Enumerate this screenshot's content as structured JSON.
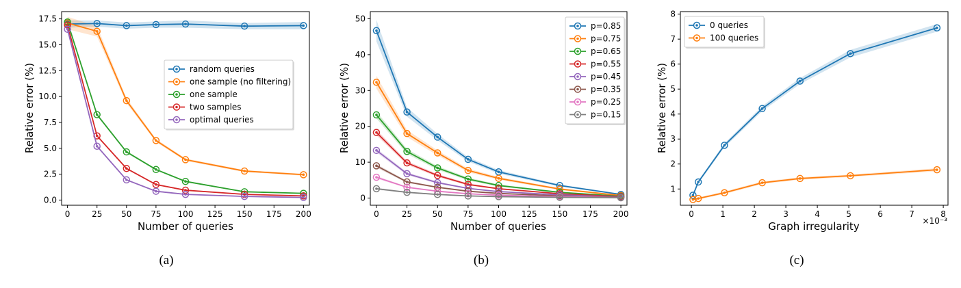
{
  "colors": {
    "blue": "#1f77b4",
    "orange": "#ff7f0e",
    "green": "#2ca02c",
    "red": "#d62728",
    "purple": "#9467bd",
    "brown": "#8c564b",
    "pink": "#e377c2",
    "gray": "#7f7f7f"
  },
  "chart_data": [
    {
      "type": "line",
      "caption": "(a)",
      "xlabel": "Number of queries",
      "ylabel": "Relative error (%)",
      "xlim": [
        -5,
        205
      ],
      "ylim": [
        -0.5,
        18.2
      ],
      "xticks": [
        0,
        25,
        50,
        75,
        100,
        125,
        150,
        175,
        200
      ],
      "xtick_labels": [
        "0",
        "25",
        "50",
        "75",
        "100",
        "125",
        "150",
        "175",
        "200"
      ],
      "yticks": [
        0,
        2.5,
        5,
        7.5,
        10,
        12.5,
        15,
        17.5
      ],
      "ytick_labels": [
        "0.0",
        "2.5",
        "5.0",
        "7.5",
        "10.0",
        "12.5",
        "15.0",
        "17.5"
      ],
      "x": [
        0,
        25,
        50,
        75,
        100,
        150,
        200
      ],
      "legend_position": "center-right",
      "series": [
        {
          "name": "random queries",
          "color": "blue",
          "values": [
            17.0,
            17.05,
            16.85,
            16.95,
            17.0,
            16.8,
            16.85
          ],
          "band": [
            0.35,
            0.3,
            0.3,
            0.3,
            0.35,
            0.3,
            0.35
          ]
        },
        {
          "name": "one sample (no filtering)",
          "color": "orange",
          "values": [
            17.1,
            16.3,
            9.6,
            5.75,
            3.9,
            2.8,
            2.45
          ],
          "band": [
            0.6,
            0.5,
            0.25,
            0.15,
            0.12,
            0.1,
            0.1
          ]
        },
        {
          "name": "one sample",
          "color": "green",
          "values": [
            17.2,
            8.25,
            4.65,
            2.95,
            1.8,
            0.8,
            0.65
          ],
          "band": [
            0.15,
            0.12,
            0.1,
            0.08,
            0.07,
            0.05,
            0.05
          ]
        },
        {
          "name": "two samples",
          "color": "red",
          "values": [
            16.9,
            6.2,
            3.05,
            1.5,
            0.95,
            0.55,
            0.4
          ],
          "band": [
            0.15,
            0.1,
            0.08,
            0.06,
            0.05,
            0.04,
            0.04
          ]
        },
        {
          "name": "optimal queries",
          "color": "purple",
          "values": [
            16.5,
            5.2,
            1.95,
            0.85,
            0.55,
            0.35,
            0.25
          ],
          "band": [
            0.15,
            0.1,
            0.08,
            0.06,
            0.05,
            0.04,
            0.04
          ]
        }
      ]
    },
    {
      "type": "line",
      "caption": "(b)",
      "xlabel": "Number of queries",
      "ylabel": "Relative error (%)",
      "xlim": [
        -5,
        205
      ],
      "ylim": [
        -2,
        52
      ],
      "xticks": [
        0,
        25,
        50,
        75,
        100,
        125,
        150,
        175,
        200
      ],
      "xtick_labels": [
        "0",
        "25",
        "50",
        "75",
        "100",
        "125",
        "150",
        "175",
        "200"
      ],
      "yticks": [
        0,
        10,
        20,
        30,
        40,
        50
      ],
      "ytick_labels": [
        "0",
        "10",
        "20",
        "30",
        "40",
        "50"
      ],
      "x": [
        0,
        25,
        50,
        75,
        100,
        150,
        200
      ],
      "legend_position": "upper-right",
      "series": [
        {
          "name": "p=0.85",
          "color": "blue",
          "values": [
            46.7,
            24.0,
            17.0,
            10.8,
            7.3,
            3.5,
            1.0
          ],
          "band": [
            3.0,
            1.3,
            0.9,
            0.6,
            0.5,
            0.3,
            0.2
          ]
        },
        {
          "name": "p=0.75",
          "color": "orange",
          "values": [
            32.3,
            18.0,
            12.6,
            7.7,
            5.5,
            2.5,
            0.7
          ],
          "band": [
            1.8,
            1.0,
            0.7,
            0.5,
            0.4,
            0.3,
            0.2
          ]
        },
        {
          "name": "p=0.65",
          "color": "green",
          "values": [
            23.2,
            13.0,
            8.4,
            5.3,
            3.5,
            1.6,
            0.5
          ],
          "band": [
            1.0,
            0.7,
            0.5,
            0.4,
            0.3,
            0.2,
            0.1
          ]
        },
        {
          "name": "p=0.55",
          "color": "red",
          "values": [
            18.3,
            9.8,
            6.3,
            3.8,
            2.6,
            1.2,
            0.4
          ],
          "band": [
            0.8,
            0.5,
            0.4,
            0.3,
            0.2,
            0.2,
            0.1
          ]
        },
        {
          "name": "p=0.45",
          "color": "purple",
          "values": [
            13.3,
            6.8,
            4.3,
            2.7,
            1.8,
            0.9,
            0.3
          ],
          "band": [
            0.6,
            0.4,
            0.3,
            0.2,
            0.2,
            0.1,
            0.1
          ]
        },
        {
          "name": "p=0.35",
          "color": "brown",
          "values": [
            9.0,
            4.5,
            3.0,
            1.9,
            1.3,
            0.6,
            0.2
          ],
          "band": [
            0.5,
            0.3,
            0.2,
            0.2,
            0.1,
            0.1,
            0.1
          ]
        },
        {
          "name": "p=0.25",
          "color": "pink",
          "values": [
            5.8,
            3.0,
            1.9,
            1.2,
            0.8,
            0.4,
            0.1
          ],
          "band": [
            0.4,
            0.2,
            0.2,
            0.1,
            0.1,
            0.1,
            0.1
          ]
        },
        {
          "name": "p=0.15",
          "color": "gray",
          "values": [
            2.6,
            1.6,
            1.0,
            0.6,
            0.4,
            0.2,
            0.1
          ],
          "band": [
            0.3,
            0.2,
            0.1,
            0.1,
            0.1,
            0.1,
            0.1
          ]
        }
      ]
    },
    {
      "type": "line",
      "caption": "(c)",
      "xlabel": "Graph irregularity",
      "ylabel": "Relative error (%)",
      "x_scale_note": "×10⁻³",
      "xlim": [
        -0.35,
        8.15
      ],
      "ylim": [
        0.35,
        8.1
      ],
      "xticks": [
        0,
        1,
        2,
        3,
        4,
        5,
        6,
        7,
        8
      ],
      "xtick_labels": [
        "0",
        "1",
        "2",
        "3",
        "4",
        "5",
        "6",
        "7",
        "8"
      ],
      "yticks": [
        1,
        2,
        3,
        4,
        5,
        6,
        7,
        8
      ],
      "ytick_labels": [
        "1",
        "2",
        "3",
        "4",
        "5",
        "6",
        "7",
        "8"
      ],
      "legend_position": "upper-left",
      "series": [
        {
          "name": "0 queries",
          "color": "blue",
          "x": [
            0.05,
            0.22,
            1.05,
            2.25,
            3.45,
            5.05,
            7.8
          ],
          "values": [
            0.75,
            1.28,
            2.75,
            4.22,
            5.32,
            6.42,
            7.45
          ],
          "band": [
            0.05,
            0.06,
            0.08,
            0.1,
            0.12,
            0.15,
            0.15
          ]
        },
        {
          "name": "100 queries",
          "color": "orange",
          "x": [
            0.05,
            0.22,
            1.05,
            2.25,
            3.45,
            5.05,
            7.8
          ],
          "values": [
            0.58,
            0.62,
            0.85,
            1.25,
            1.42,
            1.53,
            1.77
          ],
          "band": [
            0.04,
            0.04,
            0.05,
            0.05,
            0.05,
            0.05,
            0.06
          ]
        }
      ]
    }
  ]
}
